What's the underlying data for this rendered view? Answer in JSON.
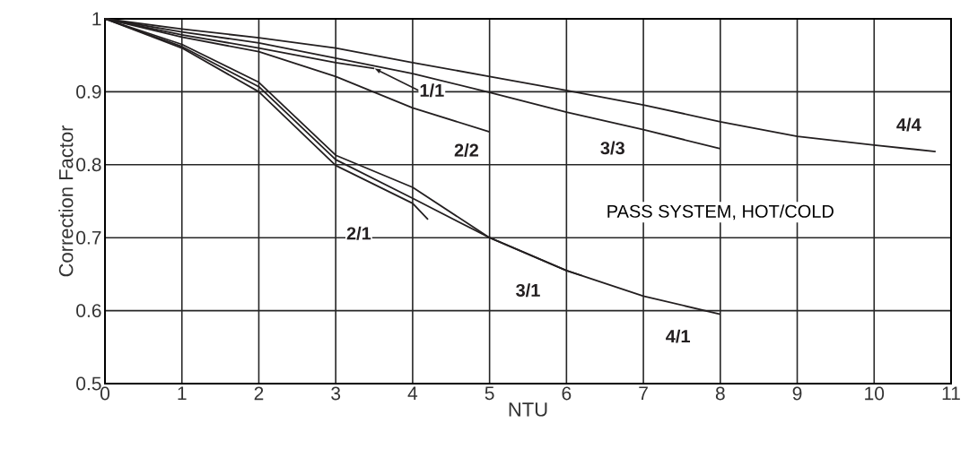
{
  "chart_data": {
    "type": "line",
    "xlabel": "NTU",
    "ylabel": "Correction Factor",
    "xlim": [
      0,
      11
    ],
    "ylim": [
      0.5,
      1
    ],
    "xticks": [
      0,
      1,
      2,
      3,
      4,
      5,
      6,
      7,
      8,
      9,
      10,
      11
    ],
    "yticks": [
      0.5,
      0.6,
      0.7,
      0.8,
      0.9,
      1
    ],
    "grid": true,
    "line_style": "solid",
    "marker": "none",
    "series": [
      {
        "name": "1/1",
        "color": "#231f20",
        "x": [
          0,
          1,
          2,
          3,
          3.5
        ],
        "values": [
          1,
          0.978,
          0.96,
          0.94,
          0.932
        ]
      },
      {
        "name": "2/2",
        "color": "#231f20",
        "x": [
          0,
          1,
          2,
          3,
          4,
          5
        ],
        "values": [
          1,
          0.975,
          0.955,
          0.921,
          0.878,
          0.845
        ]
      },
      {
        "name": "3/3",
        "color": "#231f20",
        "x": [
          0,
          1,
          2,
          3,
          4,
          5,
          6,
          7,
          8
        ],
        "values": [
          1,
          0.982,
          0.967,
          0.946,
          0.925,
          0.899,
          0.872,
          0.848,
          0.822
        ]
      },
      {
        "name": "4/4",
        "color": "#231f20",
        "x": [
          0,
          1,
          2,
          3,
          4,
          5,
          6,
          7,
          8,
          9,
          10,
          10.8
        ],
        "values": [
          1,
          0.986,
          0.974,
          0.96,
          0.94,
          0.921,
          0.902,
          0.882,
          0.859,
          0.839,
          0.827,
          0.818
        ]
      },
      {
        "name": "2/1",
        "color": "#231f20",
        "x": [
          0,
          1,
          2,
          3,
          4,
          4.2
        ],
        "values": [
          1,
          0.96,
          0.9,
          0.799,
          0.747,
          0.725
        ]
      },
      {
        "name": "3/1",
        "color": "#231f20",
        "x": [
          0,
          1,
          2,
          3,
          4,
          5,
          6,
          6.2
        ],
        "values": [
          1,
          0.962,
          0.907,
          0.807,
          0.754,
          0.7,
          0.655,
          0.648
        ]
      },
      {
        "name": "4/1",
        "color": "#231f20",
        "x": [
          0,
          1,
          2,
          3,
          4,
          5,
          6,
          7,
          8
        ],
        "values": [
          1,
          0.965,
          0.913,
          0.813,
          0.769,
          0.7,
          0.655,
          0.62,
          0.595
        ]
      }
    ],
    "annotations": [
      "PASS SYSTEM, HOT/COLD"
    ]
  }
}
